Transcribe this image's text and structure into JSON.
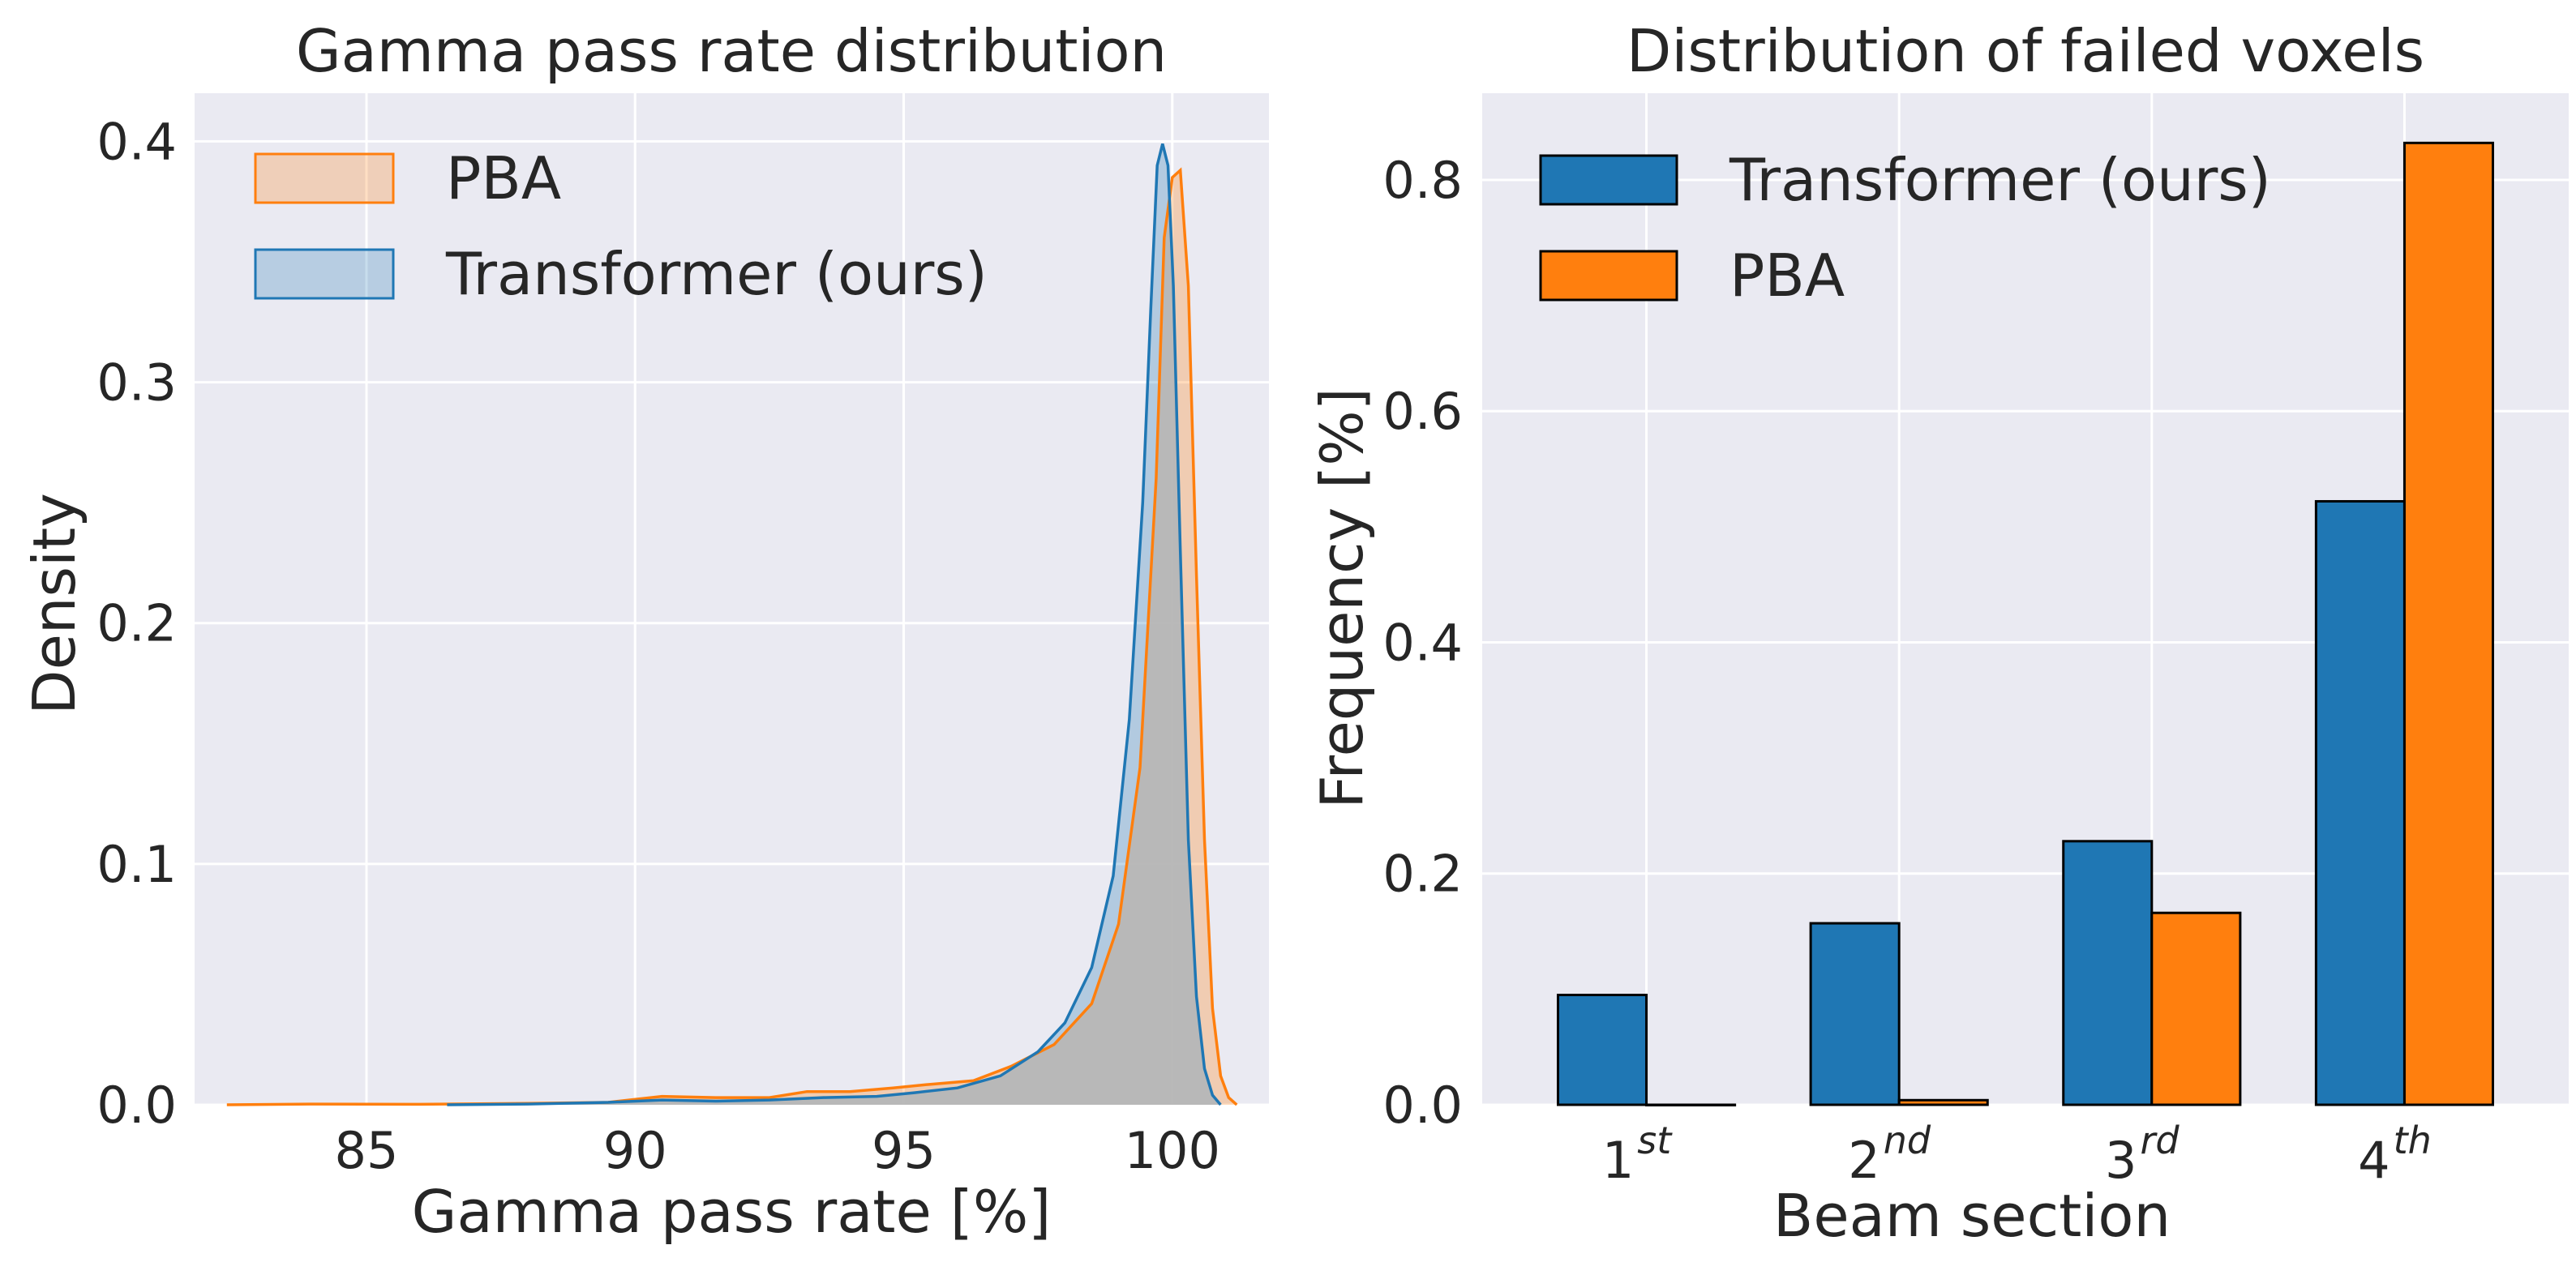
{
  "chart_data": [
    {
      "type": "area",
      "title": "Gamma pass rate distribution",
      "xlabel": "Gamma pass rate [%]",
      "ylabel": "Density",
      "xlim": [
        81.8,
        101.8
      ],
      "ylim": [
        0,
        0.42
      ],
      "xticks": [
        "85",
        "90",
        "95",
        "100"
      ],
      "yticks": [
        "0.0",
        "0.1",
        "0.2",
        "0.3",
        "0.4"
      ],
      "grid": true,
      "legend_position": "top-left",
      "colors": {
        "PBA": "#ff7f0e",
        "Transformer (ours)": "#1f77b4",
        "overlap": "#b8b8b8",
        "background": "#eaeaf2"
      },
      "series": [
        {
          "name": "PBA",
          "x": [
            82.4,
            84,
            86,
            88,
            89.5,
            90.5,
            91.5,
            92.5,
            93.2,
            94,
            94.8,
            95.5,
            96.3,
            97,
            97.8,
            98.5,
            99,
            99.4,
            99.7,
            99.85,
            100,
            100.15,
            100.3,
            100.45,
            100.6,
            100.75,
            100.9,
            101.05,
            101.2
          ],
          "y": [
            0.0,
            0.0003,
            0.0002,
            0.0006,
            0.001,
            0.0035,
            0.003,
            0.003,
            0.0055,
            0.0055,
            0.007,
            0.0085,
            0.01,
            0.016,
            0.025,
            0.042,
            0.075,
            0.14,
            0.26,
            0.36,
            0.385,
            0.388,
            0.34,
            0.22,
            0.11,
            0.04,
            0.012,
            0.003,
            0.0
          ]
        },
        {
          "name": "Transformer (ours)",
          "x": [
            86.5,
            88,
            89.5,
            90.5,
            91.5,
            92.5,
            93.5,
            94.5,
            95.2,
            96,
            96.8,
            97.5,
            98,
            98.5,
            98.9,
            99.2,
            99.45,
            99.6,
            99.72,
            99.82,
            99.92,
            100.02,
            100.15,
            100.3,
            100.45,
            100.6,
            100.75,
            100.9
          ],
          "y": [
            0.0,
            0.0003,
            0.001,
            0.002,
            0.0015,
            0.002,
            0.003,
            0.0035,
            0.005,
            0.007,
            0.012,
            0.022,
            0.034,
            0.057,
            0.095,
            0.16,
            0.25,
            0.33,
            0.39,
            0.399,
            0.39,
            0.34,
            0.23,
            0.11,
            0.045,
            0.015,
            0.004,
            0.0
          ]
        }
      ]
    },
    {
      "type": "bar",
      "title": "Distribution of failed voxels",
      "xlabel": "Beam section",
      "ylabel": "Frequency [%]",
      "ylim": [
        0,
        0.875
      ],
      "yticks": [
        "0.0",
        "0.2",
        "0.4",
        "0.6",
        "0.8"
      ],
      "categories": [
        {
          "base": "1",
          "sup": "st"
        },
        {
          "base": "2",
          "sup": "nd"
        },
        {
          "base": "3",
          "sup": "rd"
        },
        {
          "base": "4",
          "sup": "th"
        }
      ],
      "grid": true,
      "legend_position": "top-left",
      "series": [
        {
          "name": "Transformer (ours)",
          "color": "#1f77b4",
          "values": [
            0.095,
            0.157,
            0.228,
            0.522
          ]
        },
        {
          "name": "PBA",
          "color": "#ff7f0e",
          "values": [
            0.0,
            0.004,
            0.166,
            0.832
          ]
        }
      ]
    }
  ]
}
